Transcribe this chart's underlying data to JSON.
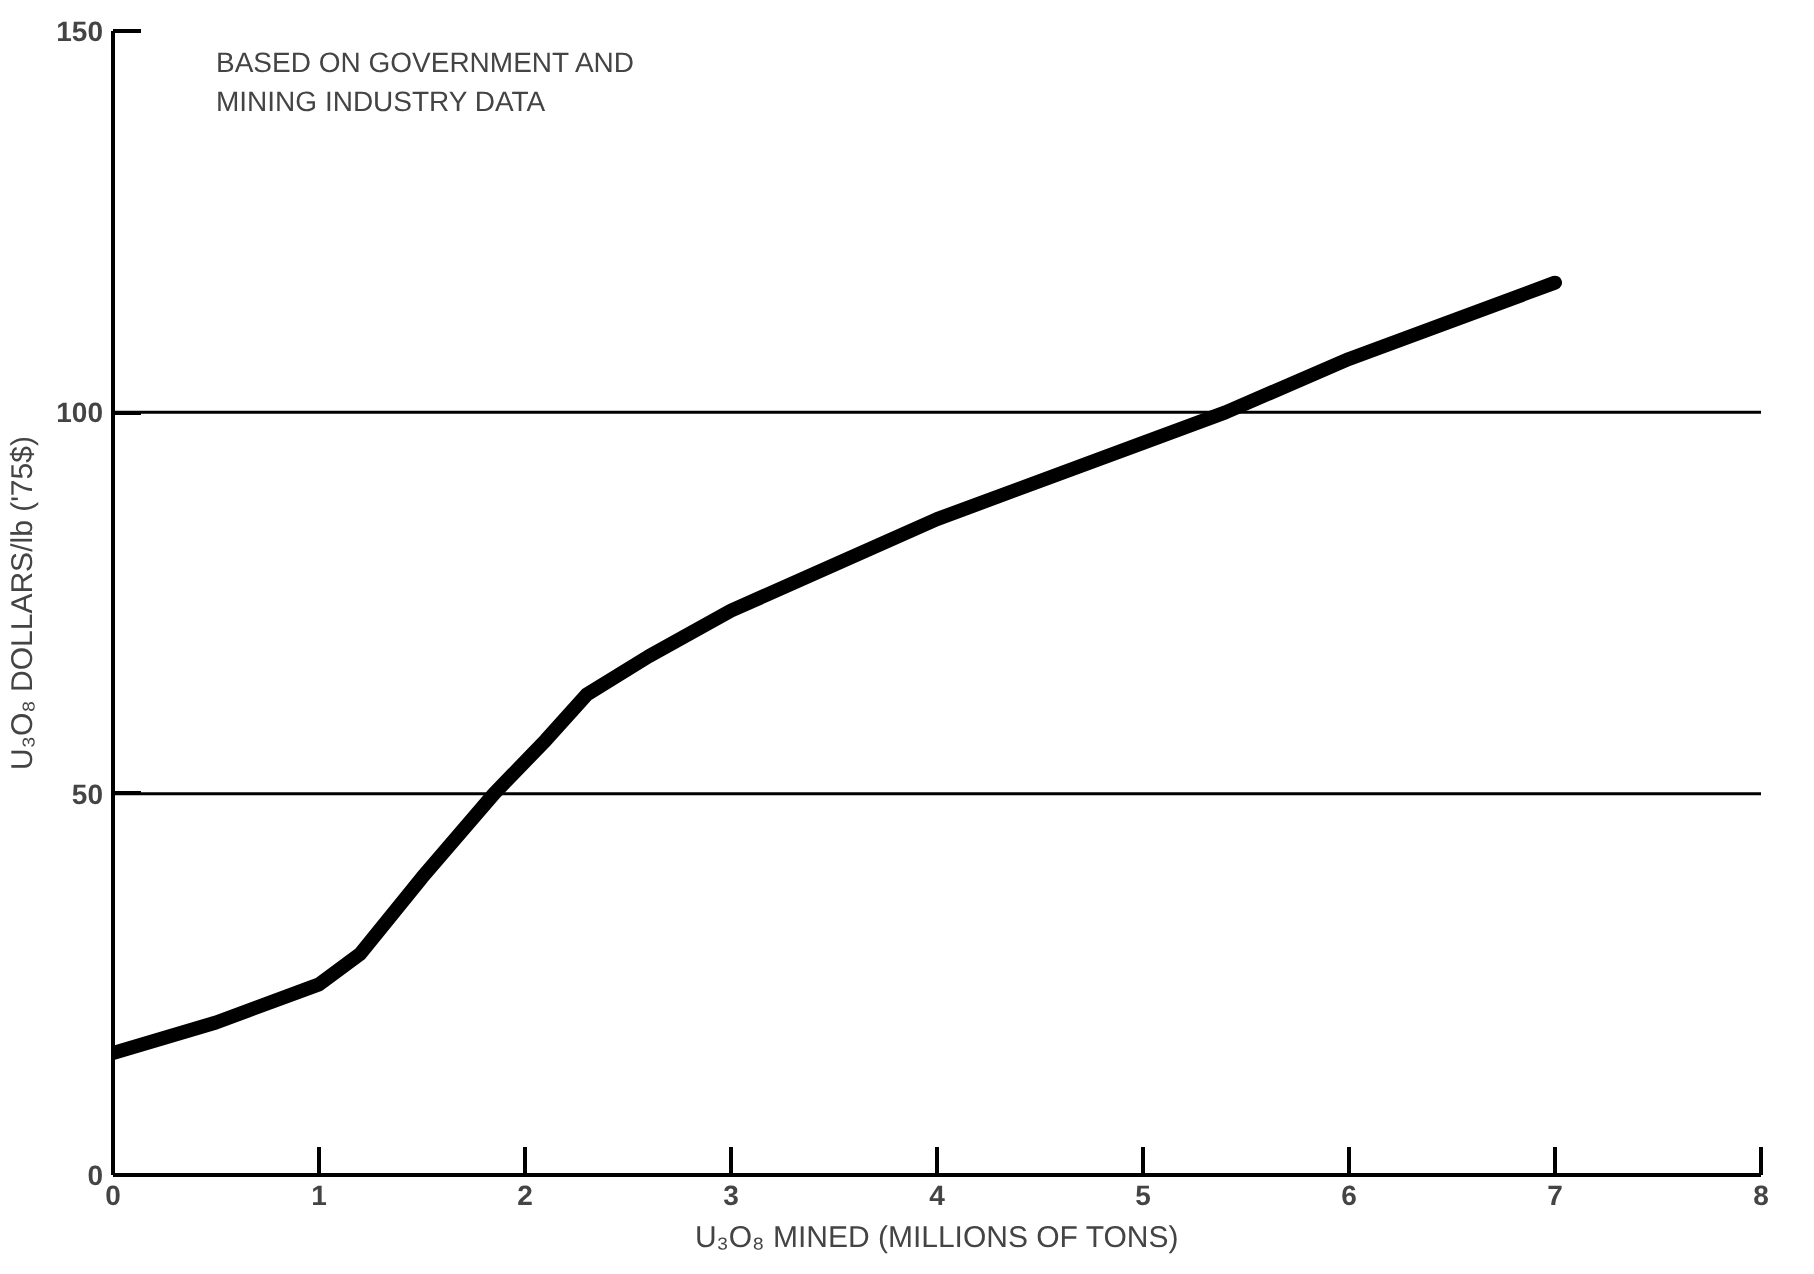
{
  "chart_data": {
    "type": "line",
    "xlabel": "U₃O₈ MINED (MILLIONS OF TONS)",
    "ylabel": "U₃O₈ DOLLARS/lb ('75$)",
    "annotations": [
      "BASED ON GOVERNMENT AND\nMINING INDUSTRY DATA"
    ],
    "x": [
      0,
      0.5,
      1,
      1.2,
      1.5,
      1.85,
      2.1,
      2.3,
      2.6,
      3,
      4,
      5,
      5.4,
      6,
      7
    ],
    "series": [
      {
        "color": "#000000",
        "values": [
          16,
          20,
          25,
          29,
          39,
          50,
          57,
          63,
          68,
          74,
          86,
          96,
          100,
          107,
          117
        ]
      }
    ],
    "xlim": [
      0,
      8
    ],
    "xticks": [
      0,
      1,
      2,
      3,
      4,
      5,
      6,
      7,
      8
    ],
    "ylim": [
      0,
      150
    ],
    "yticks": [
      0,
      50,
      100,
      150
    ],
    "grid": "y",
    "marker": "none",
    "line_style": "solid"
  }
}
